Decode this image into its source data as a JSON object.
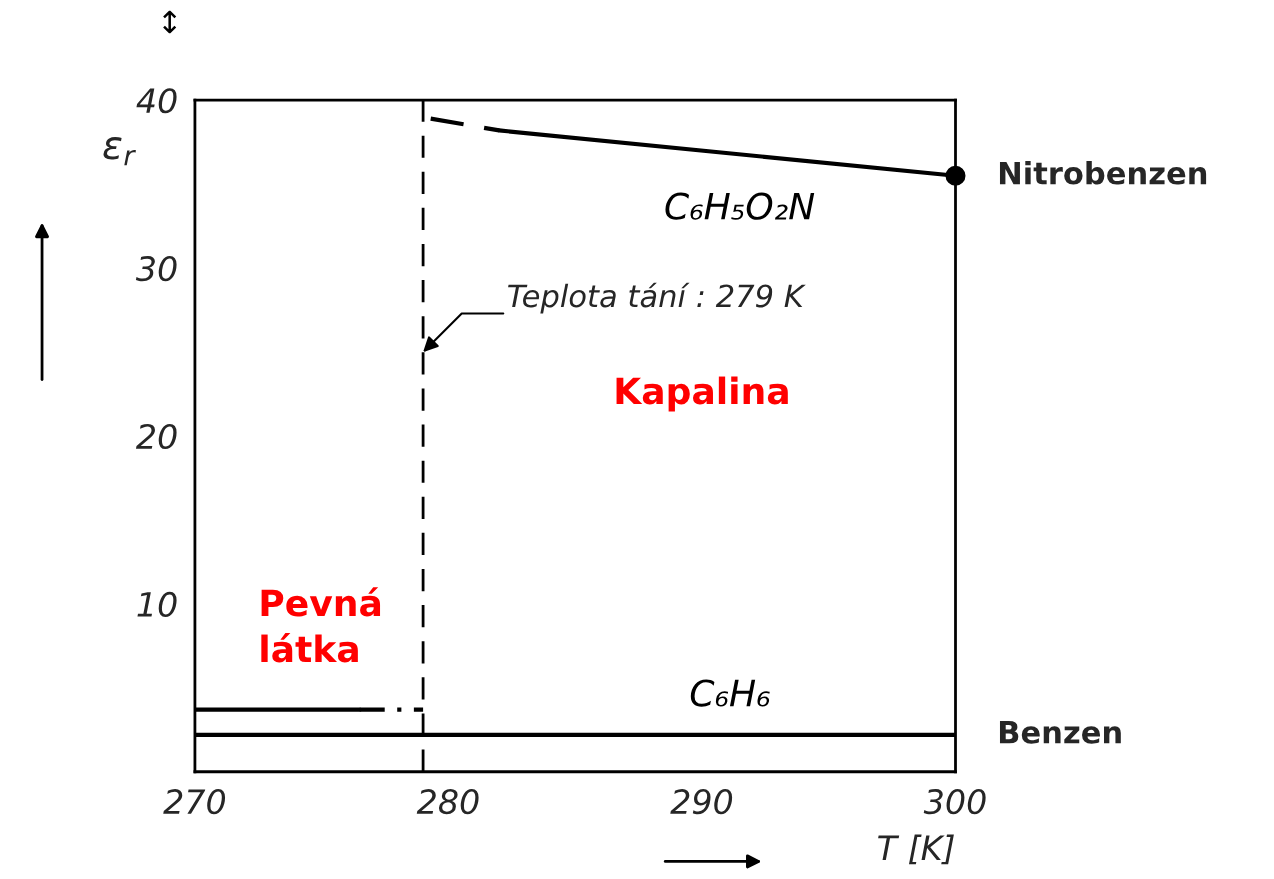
{
  "chart_data": {
    "type": "line",
    "xlabel": "T [K]",
    "ylabel": "ε$_{r}$",
    "xlim": [
      270,
      300
    ],
    "ylim": [
      0,
      40
    ],
    "xticks": [
      270,
      280,
      290,
      300
    ],
    "yticks": [
      10,
      20,
      30,
      40
    ],
    "grid": false,
    "series": [
      {
        "name": "Nitrobenzen",
        "color": "#000000",
        "x": [
          282,
          300
        ],
        "values": [
          38.2,
          35.5
        ],
        "line_style": "solid"
      },
      {
        "color": "#000000",
        "x": [
          279.3,
          282
        ],
        "values": [
          38.9,
          38.2
        ],
        "line_style": "dashed"
      },
      {
        "type": "scatter",
        "color": "#000000",
        "x": [
          300
        ],
        "values": [
          35.5
        ],
        "marker": "circle"
      },
      {
        "name": "Benzen",
        "color": "#000000",
        "x": [
          270,
          300
        ],
        "values": [
          2.2,
          2.2
        ],
        "line_style": "solid"
      },
      {
        "color": "#000000",
        "x": [
          270,
          276.5
        ],
        "values": [
          3.7,
          3.7
        ],
        "line_style": "solid"
      },
      {
        "color": "#000000",
        "x": [
          276.5,
          279
        ],
        "values": [
          3.7,
          3.7
        ],
        "line_style": "dashdot"
      }
    ],
    "ref_lines": [
      {
        "axis": "x",
        "value": 279,
        "color": "#000000",
        "line_style": "dashed"
      }
    ],
    "annotations": [
      {
        "text": "Teplota tání : 279 K",
        "x": 279,
        "y": 25
      },
      "C₆H₅O₂N",
      "C₆H₆",
      "Kapalina",
      "Pevná látka",
      "↕"
    ]
  }
}
